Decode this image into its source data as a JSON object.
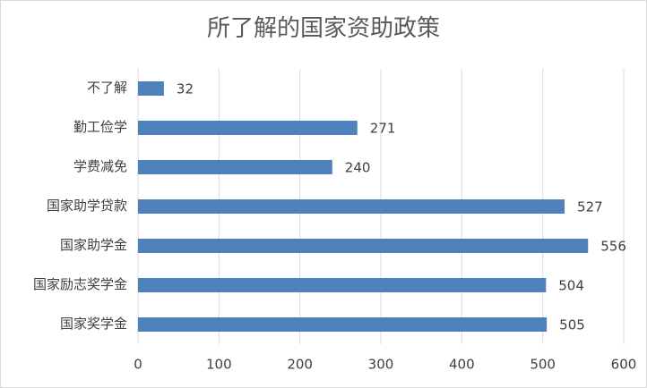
{
  "chart_data": {
    "type": "barh",
    "title": "所了解的国家资助政策",
    "categories": [
      "不了解",
      "勤工俭学",
      "学费减免",
      "国家助学贷款",
      "国家助学金",
      "国家励志奖学金",
      "国家奖学金"
    ],
    "values": [
      32,
      271,
      240,
      527,
      556,
      504,
      505
    ],
    "color": "#4f81bd",
    "xlim": [
      0,
      600
    ],
    "xticks": [
      0,
      100,
      200,
      300,
      400,
      500,
      600
    ],
    "grid": true
  }
}
